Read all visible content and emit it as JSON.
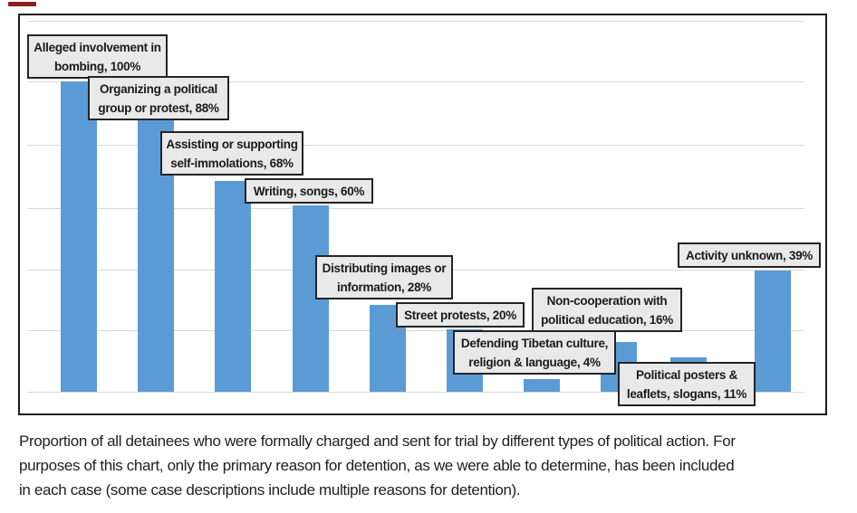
{
  "artifact": {
    "red_mark_color": "#8e1f1f"
  },
  "chart_data": {
    "type": "bar",
    "title": "",
    "xlabel": "",
    "ylabel": "",
    "ylim": [
      0,
      120
    ],
    "gridline_step_percent": 20,
    "grid": "horizontal",
    "legend": "none",
    "axis_tick_labels_visible": false,
    "categories": [
      "Alleged involvement in bombing",
      "Organizing a political group or protest",
      "Assisting or supporting self-immolations",
      "Writing, songs",
      "Distributing images or information",
      "Street protests",
      "Defending Tibetan culture, religion & language",
      "Non-cooperation with political education",
      "Political posters & leaflets, slogans",
      "Activity unknown"
    ],
    "values": [
      100,
      88,
      68,
      60,
      28,
      20,
      4,
      16,
      11,
      39
    ],
    "data_labels": [
      [
        "Alleged involvement in",
        "bombing, 100%"
      ],
      [
        "Organizing a political",
        "group or protest, 88%"
      ],
      [
        "Assisting or supporting",
        "self-immolations, 68%"
      ],
      [
        "Writing, songs, 60%"
      ],
      [
        "Distributing images or",
        "information, 28%"
      ],
      [
        "Street protests, 20%"
      ],
      [
        "Defending Tibetan culture,",
        "religion & language, 4%"
      ],
      [
        "Non-cooperation with",
        "political education, 16%"
      ],
      [
        "Political posters &",
        "leaflets, slogans, 11%"
      ],
      [
        "Activity unknown, 39%"
      ]
    ],
    "colors": {
      "bar": "#5b9bd5",
      "gridline": "#d9d9d9",
      "frame_border": "#1d1d1d",
      "callout_background": "#e9e9e9",
      "callout_border": "#242424",
      "callout_text": "#1b1b1b"
    }
  },
  "caption": {
    "lines": [
      "Proportion of all detainees who were formally charged and sent for trial by different types of political action. For",
      "purposes of this chart, only the primary reason for detention, as we were able to determine, has been included",
      "in each case (some case descriptions include multiple reasons for detention)."
    ]
  }
}
